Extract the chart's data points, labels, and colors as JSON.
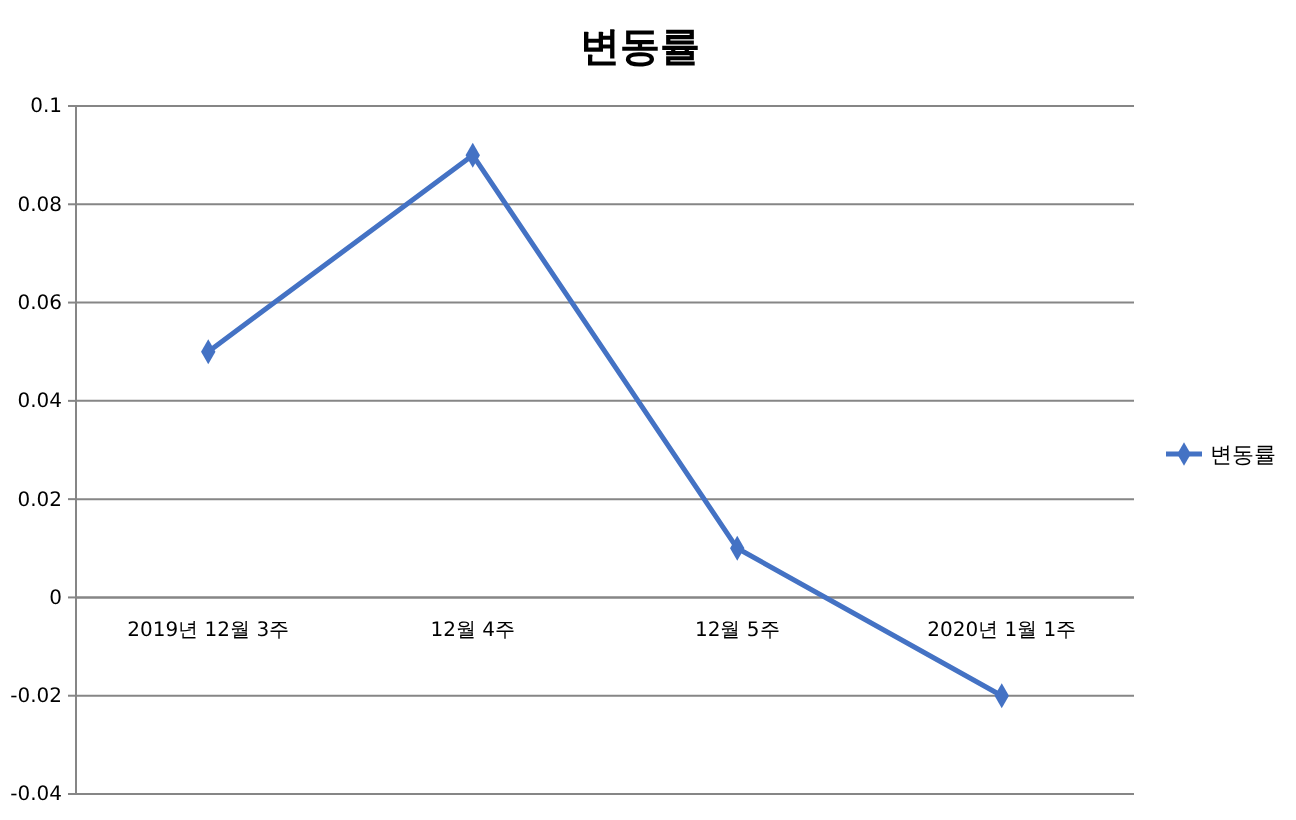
{
  "chart_data": {
    "type": "line",
    "title": "변동률",
    "categories": [
      "2019년 12월 3주",
      "12월 4주",
      "12월 5주",
      "2020년 1월 1주"
    ],
    "series": [
      {
        "name": "변동률",
        "color": "#4472c4",
        "values": [
          0.05,
          0.09,
          0.01,
          -0.02
        ]
      }
    ],
    "ylim": [
      -0.04,
      0.1
    ],
    "yticks": [
      -0.04,
      -0.02,
      0,
      0.02,
      0.04,
      0.06,
      0.08,
      0.1
    ],
    "grid": "y",
    "legend": "right",
    "marker": "diamond"
  }
}
